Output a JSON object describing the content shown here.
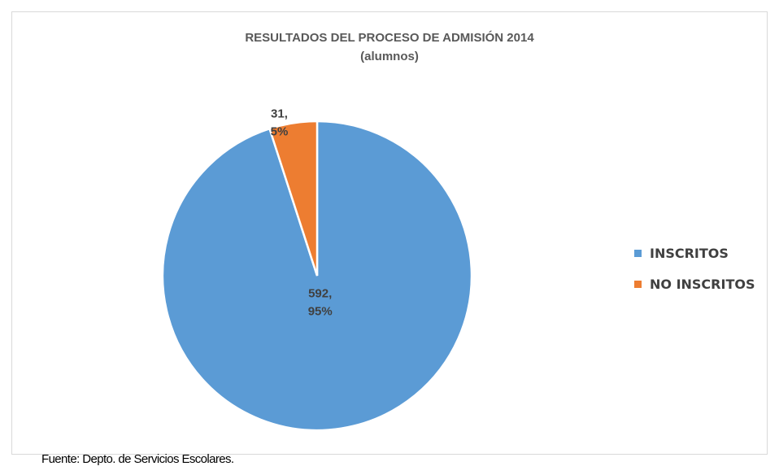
{
  "chart_data": {
    "type": "pie",
    "title": "RESULTADOS DEL PROCESO DE ADMISIÓN 2014",
    "subtitle": "(alumnos)",
    "categories": [
      "INSCRITOS",
      "NO INSCRITOS"
    ],
    "values": [
      592,
      31
    ],
    "percents": [
      "95%",
      "5%"
    ],
    "data_labels": [
      {
        "value": "592,",
        "percent": "95%"
      },
      {
        "value": "31,",
        "percent": "5%"
      }
    ],
    "colors": [
      "#5b9bd5",
      "#ed7d31"
    ],
    "legend_position": "right"
  },
  "source": "Fuente: Depto. de Servicios Escolares."
}
